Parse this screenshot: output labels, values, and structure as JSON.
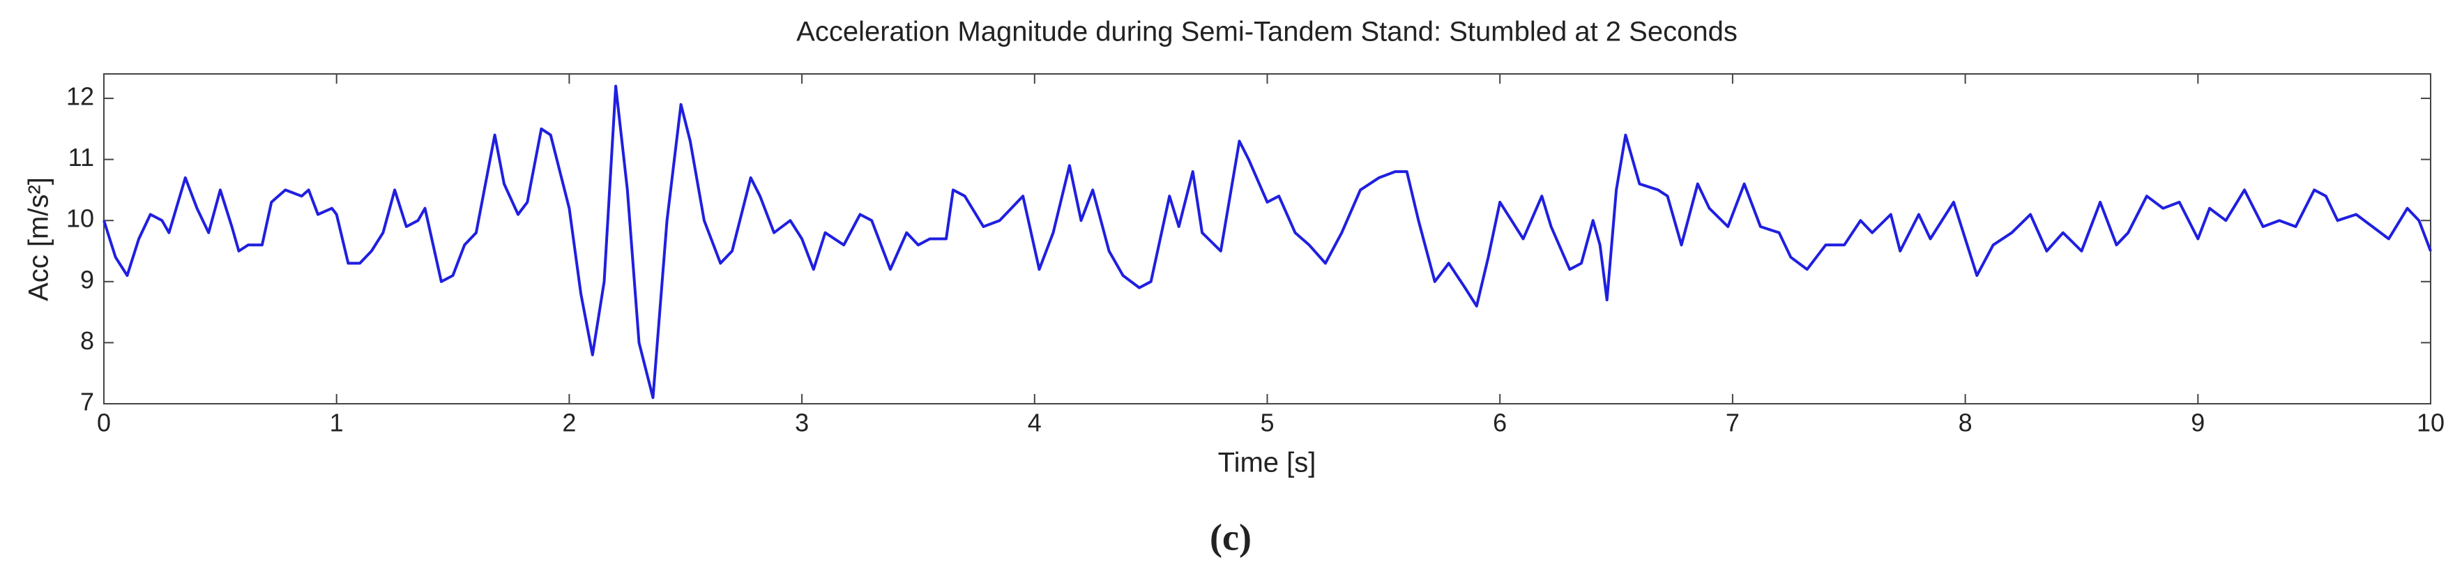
{
  "chart_data": {
    "type": "line",
    "title": "Acceleration Magnitude during Semi-Tandem Stand: Stumbled at 2 Seconds",
    "x_label": "Time [s]",
    "y_label": "Acc [m/s²]",
    "caption": "(c)",
    "xlim": [
      0,
      10
    ],
    "ylim": [
      7,
      12.4
    ],
    "xticks": [
      0,
      1,
      2,
      3,
      4,
      5,
      6,
      7,
      8,
      9,
      10
    ],
    "yticks": [
      7,
      8,
      9,
      10,
      11,
      12
    ],
    "series": [
      {
        "color": "#1f1fe0",
        "x": [
          0,
          0.05,
          0.1,
          0.15,
          0.2,
          0.25,
          0.28,
          0.35,
          0.4,
          0.45,
          0.5,
          0.55,
          0.58,
          0.62,
          0.68,
          0.72,
          0.78,
          0.85,
          0.88,
          0.92,
          0.98,
          1.0,
          1.05,
          1.1,
          1.15,
          1.2,
          1.25,
          1.3,
          1.35,
          1.38,
          1.45,
          1.5,
          1.55,
          1.6,
          1.68,
          1.72,
          1.78,
          1.82,
          1.88,
          1.92,
          2.0,
          2.05,
          2.1,
          2.15,
          2.2,
          2.25,
          2.3,
          2.36,
          2.42,
          2.48,
          2.52,
          2.58,
          2.65,
          2.7,
          2.78,
          2.82,
          2.88,
          2.95,
          3.0,
          3.05,
          3.1,
          3.18,
          3.25,
          3.3,
          3.38,
          3.45,
          3.5,
          3.55,
          3.62,
          3.65,
          3.7,
          3.78,
          3.85,
          3.95,
          4.02,
          4.08,
          4.15,
          4.2,
          4.25,
          4.32,
          4.38,
          4.45,
          4.5,
          4.58,
          4.62,
          4.68,
          4.72,
          4.8,
          4.88,
          4.92,
          5.0,
          5.05,
          5.12,
          5.18,
          5.25,
          5.32,
          5.4,
          5.48,
          5.55,
          5.6,
          5.65,
          5.72,
          5.78,
          5.85,
          5.9,
          5.95,
          6.0,
          6.05,
          6.1,
          6.18,
          6.22,
          6.3,
          6.35,
          6.4,
          6.43,
          6.46,
          6.5,
          6.54,
          6.6,
          6.68,
          6.72,
          6.78,
          6.85,
          6.9,
          6.98,
          7.05,
          7.12,
          7.2,
          7.25,
          7.32,
          7.4,
          7.48,
          7.55,
          7.6,
          7.68,
          7.72,
          7.8,
          7.85,
          7.95,
          8.05,
          8.12,
          8.2,
          8.28,
          8.35,
          8.42,
          8.5,
          8.58,
          8.65,
          8.7,
          8.78,
          8.85,
          8.92,
          9.0,
          9.05,
          9.12,
          9.2,
          9.28,
          9.35,
          9.42,
          9.5,
          9.55,
          9.6,
          9.68,
          9.75,
          9.82,
          9.9,
          9.95,
          10.0
        ],
        "values": [
          10.0,
          9.4,
          9.1,
          9.7,
          10.1,
          10.0,
          9.8,
          10.7,
          10.2,
          9.8,
          10.5,
          9.9,
          9.5,
          9.6,
          9.6,
          10.3,
          10.5,
          10.4,
          10.5,
          10.1,
          10.2,
          10.1,
          9.3,
          9.3,
          9.5,
          9.8,
          10.5,
          9.9,
          10.0,
          10.2,
          9.0,
          9.1,
          9.6,
          9.8,
          11.4,
          10.6,
          10.1,
          10.3,
          11.5,
          11.4,
          10.2,
          8.8,
          7.8,
          9.0,
          12.2,
          10.5,
          8.0,
          7.1,
          10.0,
          11.9,
          11.3,
          10.0,
          9.3,
          9.5,
          10.7,
          10.4,
          9.8,
          10.0,
          9.7,
          9.2,
          9.8,
          9.6,
          10.1,
          10.0,
          9.2,
          9.8,
          9.6,
          9.7,
          9.7,
          10.5,
          10.4,
          9.9,
          10.0,
          10.4,
          9.2,
          9.8,
          10.9,
          10.0,
          10.5,
          9.5,
          9.1,
          8.9,
          9.0,
          10.4,
          9.9,
          10.8,
          9.8,
          9.5,
          11.3,
          11.0,
          10.3,
          10.4,
          9.8,
          9.6,
          9.3,
          9.8,
          10.5,
          10.7,
          10.8,
          10.8,
          10.0,
          9.0,
          9.3,
          8.9,
          8.6,
          9.4,
          10.3,
          10.0,
          9.7,
          10.4,
          9.9,
          9.2,
          9.3,
          10.0,
          9.6,
          8.7,
          10.5,
          11.4,
          10.6,
          10.5,
          10.4,
          9.6,
          10.6,
          10.2,
          9.9,
          10.6,
          9.9,
          9.8,
          9.4,
          9.2,
          9.6,
          9.6,
          10.0,
          9.8,
          10.1,
          9.5,
          10.1,
          9.7,
          10.3,
          9.1,
          9.6,
          9.8,
          10.1,
          9.5,
          9.8,
          9.5,
          10.3,
          9.6,
          9.8,
          10.4,
          10.2,
          10.3,
          9.7,
          10.2,
          10.0,
          10.5,
          9.9,
          10.0,
          9.9,
          10.5,
          10.4,
          10.0,
          10.1,
          9.9,
          9.7,
          10.2,
          10.0,
          9.5
        ]
      }
    ]
  }
}
